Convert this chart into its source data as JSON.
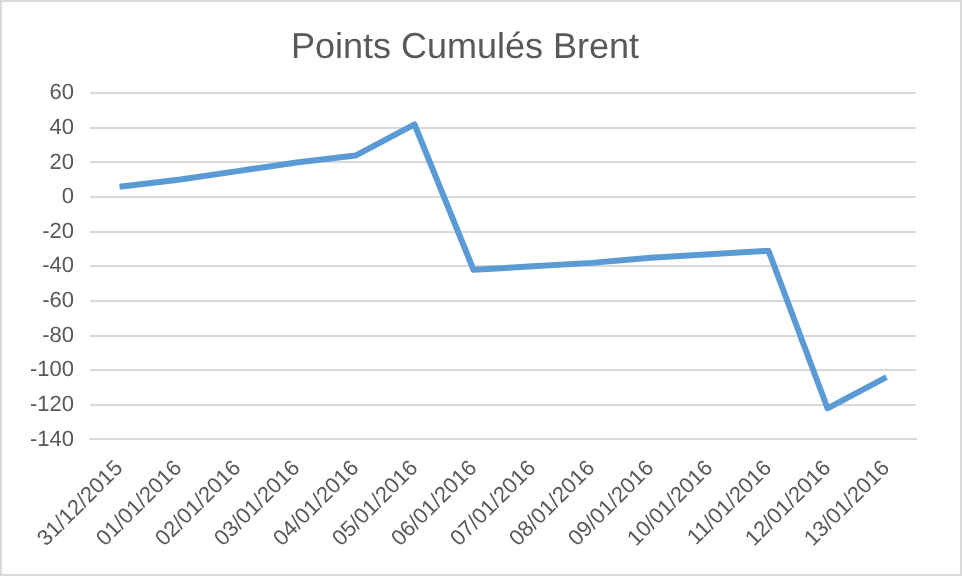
{
  "chart_data": {
    "type": "line",
    "title": "Points Cumulés Brent",
    "categories": [
      "31/12/2015",
      "01/01/2016",
      "02/01/2016",
      "03/01/2016",
      "04/01/2016",
      "05/01/2016",
      "06/01/2016",
      "07/01/2016",
      "08/01/2016",
      "09/01/2016",
      "10/01/2016",
      "11/01/2016",
      "12/01/2016",
      "13/01/2016"
    ],
    "series": [
      {
        "color": "#5b9bd5",
        "values": [
          6,
          10,
          15,
          20,
          24,
          42,
          -42,
          -40,
          -38,
          -35,
          -33,
          -31,
          -122,
          -104
        ]
      }
    ],
    "ylim": [
      -140,
      60
    ],
    "yticks": [
      -140,
      -120,
      -100,
      -80,
      -60,
      -40,
      -20,
      0,
      20,
      40,
      60
    ],
    "grid": "y",
    "legend": false,
    "marker": "none",
    "line_style": "solid"
  }
}
